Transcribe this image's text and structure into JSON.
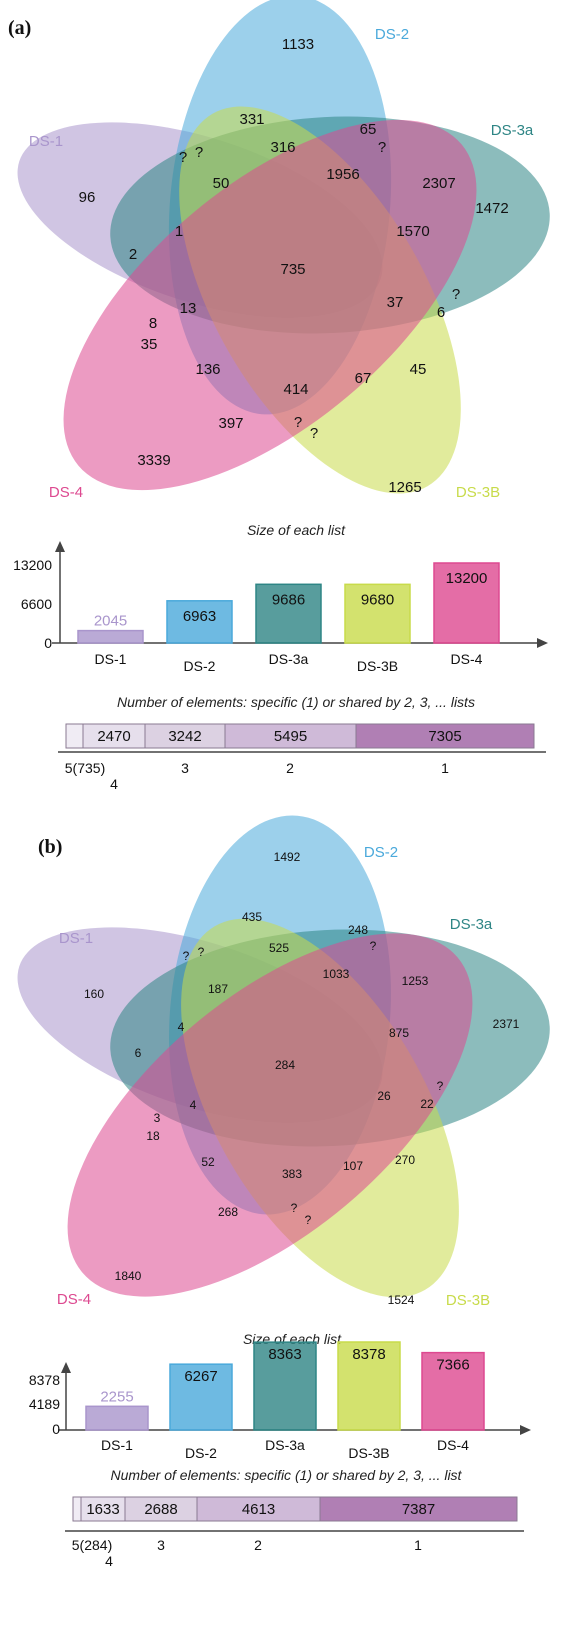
{
  "colors": {
    "ds1": "#a995cc",
    "ds2": "#4aa9db",
    "ds3a": "#2e8585",
    "ds3b": "#c8db4a",
    "ds4": "#dd4990",
    "seg": [
      "#f0ecf4",
      "#e6dfec",
      "#dcd1e2",
      "#cfbad8",
      "#b07fb4"
    ]
  },
  "panel_a": {
    "label": "(a)",
    "venn": {
      "sets": [
        "DS-1",
        "DS-2",
        "DS-3a",
        "DS-3B",
        "DS-4"
      ],
      "regions": [
        "1133",
        "96",
        "1472",
        "1265",
        "3339",
        "331",
        "65",
        "316",
        "50",
        "1956",
        "2307",
        "1570",
        "735",
        "37",
        "6",
        "13",
        "1",
        "2",
        "8",
        "35",
        "136",
        "414",
        "67",
        "45",
        "397",
        "?",
        "?",
        "?",
        "?",
        "?",
        "?"
      ]
    },
    "bar_title": "Size of each list",
    "bar_chart": {
      "type": "bar",
      "categories": [
        "DS-1",
        "DS-2",
        "DS-3a",
        "DS-3B",
        "DS-4"
      ],
      "values": [
        2045,
        6963,
        9686,
        9680,
        13200
      ],
      "value_labels": [
        "2045",
        "6963",
        "9686",
        "9680",
        "13200"
      ],
      "y_ticks": [
        "13200",
        "6600",
        "0"
      ],
      "ylim": [
        0,
        13200
      ]
    },
    "shared_title": "Number of elements: specific (1) or shared by 2, 3, ... lists",
    "shared_chart": {
      "type": "bar",
      "segments": [
        {
          "count": 735,
          "value_label": "",
          "axis_label": "5(735)"
        },
        {
          "count": 2470,
          "value_label": "2470",
          "axis_label": "4"
        },
        {
          "count": 3242,
          "value_label": "3242",
          "axis_label": "3"
        },
        {
          "count": 5495,
          "value_label": "5495",
          "axis_label": "2"
        },
        {
          "count": 7305,
          "value_label": "7305",
          "axis_label": "1"
        }
      ]
    }
  },
  "panel_b": {
    "label": "(b)",
    "venn": {
      "sets": [
        "DS-1",
        "DS-2",
        "DS-3a",
        "DS-3B",
        "DS-4"
      ],
      "regions": [
        "1492",
        "160",
        "2371",
        "1524",
        "1840",
        "435",
        "248",
        "525",
        "187",
        "1033",
        "1253",
        "875",
        "284",
        "26",
        "22",
        "4",
        "4",
        "6",
        "3",
        "18",
        "52",
        "383",
        "107",
        "270",
        "268",
        "?",
        "?",
        "?",
        "?",
        "?",
        "?"
      ]
    },
    "bar_title": "Size of each list",
    "bar_chart": {
      "type": "bar",
      "categories": [
        "DS-1",
        "DS-2",
        "DS-3a",
        "DS-3B",
        "DS-4"
      ],
      "values": [
        2255,
        6267,
        8363,
        8378,
        7366
      ],
      "value_labels": [
        "2255",
        "6267",
        "8363",
        "8378",
        "7366"
      ],
      "y_ticks": [
        "8378",
        "4189",
        "0"
      ],
      "ylim": [
        0,
        8378
      ]
    },
    "shared_title": "Number of elements: specific (1) or shared by 2, 3, ... list",
    "shared_chart": {
      "type": "bar",
      "segments": [
        {
          "count": 284,
          "value_label": "",
          "axis_label": "5(284)"
        },
        {
          "count": 1633,
          "value_label": "1633",
          "axis_label": "4"
        },
        {
          "count": 2688,
          "value_label": "2688",
          "axis_label": "3"
        },
        {
          "count": 4613,
          "value_label": "4613",
          "axis_label": "2"
        },
        {
          "count": 7387,
          "value_label": "7387",
          "axis_label": "1"
        }
      ]
    }
  }
}
